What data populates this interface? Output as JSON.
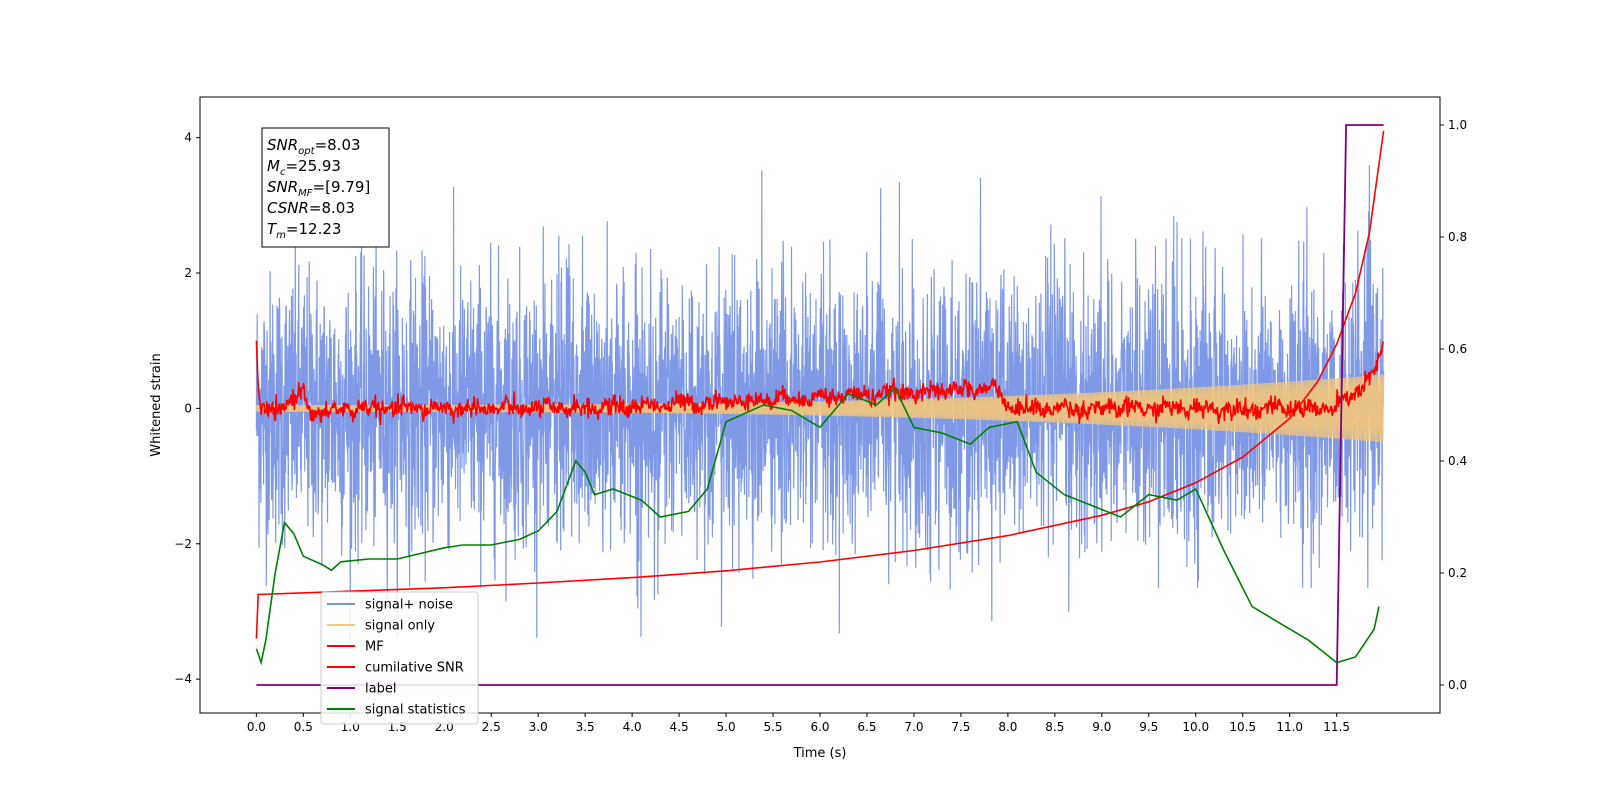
{
  "chart_data": {
    "type": "line",
    "title": "",
    "xlabel": "Time (s)",
    "ylabel": "Whitened strain",
    "xlim": [
      -0.6,
      12.6
    ],
    "ylim": [
      -4.5,
      4.6
    ],
    "y2lim": [
      -0.05,
      1.05
    ],
    "xticks": [
      0.0,
      0.5,
      1.0,
      1.5,
      2.0,
      2.5,
      3.0,
      3.5,
      4.0,
      4.5,
      5.0,
      5.5,
      6.0,
      6.5,
      7.0,
      7.5,
      8.0,
      8.5,
      9.0,
      9.5,
      10.0,
      10.5,
      11.0,
      11.5
    ],
    "xtick_labels": [
      "0.0",
      "0.5",
      "1.0",
      "1.5",
      "2.0",
      "2.5",
      "3.0",
      "3.5",
      "4.0",
      "4.5",
      "5.0",
      "5.5",
      "6.0",
      "6.5",
      "7.0",
      "7.5",
      "8.0",
      "8.5",
      "9.0",
      "9.5",
      "10.0",
      "10.5",
      "11.0",
      "11.5"
    ],
    "yticks": [
      -4,
      -2,
      0,
      2,
      4
    ],
    "ytick_labels": [
      "−4",
      "−2",
      "0",
      "2",
      "4"
    ],
    "y2ticks": [
      0.0,
      0.2,
      0.4,
      0.6,
      0.8,
      1.0
    ],
    "y2tick_labels": [
      "0.0",
      "0.2",
      "0.4",
      "0.6",
      "0.8",
      "1.0"
    ],
    "grid": false,
    "legend_position": "lower-left",
    "annotation": {
      "lines": [
        {
          "base": "SNR",
          "sub": "opt",
          "rest": "=8.03"
        },
        {
          "base": "M",
          "sub": "c",
          "rest": "=25.93"
        },
        {
          "base": "SNR",
          "sub": "MF",
          "rest": "=[9.79]"
        },
        {
          "base": "CSNR",
          "sub": "",
          "rest": "=8.03"
        },
        {
          "base": "T",
          "sub": "m",
          "rest": "=12.23"
        }
      ]
    },
    "series": [
      {
        "name": "signal+ noise",
        "color": "#7893e6",
        "axis": "left",
        "summary": {
          "t_start": 0.0,
          "t_end": 12.0,
          "mean": 0.0,
          "typical_range": [
            -2.0,
            2.0
          ],
          "max": 3.7,
          "min": -3.6
        }
      },
      {
        "name": "signal only",
        "color": "#f4c77a",
        "axis": "left",
        "summary": {
          "t_start": 0.0,
          "t_end": 12.0,
          "amplitude_start": 0.05,
          "amplitude_end": 0.5
        }
      },
      {
        "name": "MF",
        "color": "#ff0000",
        "axis": "left",
        "points": [
          [
            0.0,
            1.0
          ],
          [
            0.02,
            0.3
          ],
          [
            0.05,
            -0.05
          ],
          [
            0.2,
            -0.05
          ],
          [
            0.5,
            0.25
          ],
          [
            0.6,
            -0.1
          ],
          [
            1.0,
            0.0
          ],
          [
            3.5,
            0.0
          ],
          [
            7.9,
            0.3
          ],
          [
            8.0,
            0.0
          ],
          [
            11.5,
            0.0
          ],
          [
            11.9,
            0.5
          ],
          [
            12.0,
            0.9
          ]
        ]
      },
      {
        "name": "cumilative SNR",
        "color": "#ff0000",
        "axis": "left",
        "points": [
          [
            0.0,
            -3.4
          ],
          [
            0.02,
            -2.75
          ],
          [
            1,
            -2.7
          ],
          [
            2,
            -2.65
          ],
          [
            3,
            -2.58
          ],
          [
            4,
            -2.5
          ],
          [
            5,
            -2.4
          ],
          [
            6,
            -2.27
          ],
          [
            7,
            -2.1
          ],
          [
            8,
            -1.88
          ],
          [
            9,
            -1.58
          ],
          [
            9.5,
            -1.38
          ],
          [
            10,
            -1.1
          ],
          [
            10.5,
            -0.72
          ],
          [
            11,
            -0.15
          ],
          [
            11.3,
            0.4
          ],
          [
            11.5,
            0.95
          ],
          [
            11.7,
            1.7
          ],
          [
            11.85,
            2.6
          ],
          [
            11.95,
            3.6
          ],
          [
            12.0,
            4.1
          ]
        ]
      },
      {
        "name": "label",
        "color": "#800080",
        "axis": "right",
        "points": [
          [
            0.0,
            0.0
          ],
          [
            11.5,
            0.0
          ],
          [
            11.6,
            1.0
          ],
          [
            12.0,
            1.0
          ]
        ]
      },
      {
        "name": "signal statistics",
        "color": "#008000",
        "axis": "right",
        "points": [
          [
            0.0,
            0.065
          ],
          [
            0.05,
            0.04
          ],
          [
            0.1,
            0.08
          ],
          [
            0.2,
            0.2
          ],
          [
            0.3,
            0.29
          ],
          [
            0.4,
            0.27
          ],
          [
            0.5,
            0.23
          ],
          [
            0.7,
            0.215
          ],
          [
            0.8,
            0.205
          ],
          [
            0.9,
            0.22
          ],
          [
            1.2,
            0.225
          ],
          [
            1.5,
            0.225
          ],
          [
            2.0,
            0.245
          ],
          [
            2.2,
            0.25
          ],
          [
            2.5,
            0.25
          ],
          [
            2.8,
            0.26
          ],
          [
            3.0,
            0.275
          ],
          [
            3.2,
            0.31
          ],
          [
            3.4,
            0.4
          ],
          [
            3.5,
            0.38
          ],
          [
            3.6,
            0.34
          ],
          [
            3.8,
            0.35
          ],
          [
            4.1,
            0.33
          ],
          [
            4.3,
            0.3
          ],
          [
            4.6,
            0.31
          ],
          [
            4.8,
            0.35
          ],
          [
            5.0,
            0.47
          ],
          [
            5.4,
            0.5
          ],
          [
            5.7,
            0.49
          ],
          [
            6.0,
            0.46
          ],
          [
            6.3,
            0.52
          ],
          [
            6.6,
            0.5
          ],
          [
            6.8,
            0.53
          ],
          [
            7.0,
            0.46
          ],
          [
            7.3,
            0.45
          ],
          [
            7.6,
            0.43
          ],
          [
            7.8,
            0.46
          ],
          [
            8.1,
            0.47
          ],
          [
            8.3,
            0.38
          ],
          [
            8.6,
            0.34
          ],
          [
            8.9,
            0.32
          ],
          [
            9.2,
            0.3
          ],
          [
            9.5,
            0.34
          ],
          [
            9.8,
            0.33
          ],
          [
            10.0,
            0.35
          ],
          [
            10.3,
            0.24
          ],
          [
            10.6,
            0.14
          ],
          [
            10.9,
            0.11
          ],
          [
            11.2,
            0.08
          ],
          [
            11.5,
            0.04
          ],
          [
            11.7,
            0.05
          ],
          [
            11.9,
            0.1
          ],
          [
            11.95,
            0.14
          ]
        ]
      }
    ]
  }
}
